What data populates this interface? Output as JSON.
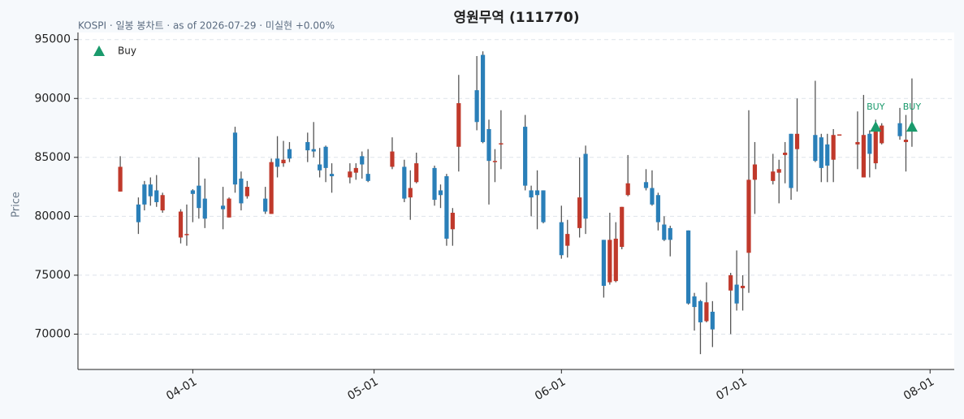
{
  "chart_data": {
    "type": "candlestick",
    "title": "영원무역 (111770)",
    "subtitle": "KOSPI · 일봉 봉차트 · as of 2026-07-29 · 미실현 +0.00%",
    "ylabel": "Price",
    "up_color": "#c0392b",
    "down_color": "#2a7fb8",
    "wick_color": "#555555",
    "grid": true,
    "legend": "upper left",
    "xlim": [
      "03-13",
      "08-05"
    ],
    "xticks": [
      "04-01",
      "05-01",
      "06-01",
      "07-01",
      "08-01"
    ],
    "ylim": [
      67000,
      95600
    ],
    "yticks": [
      70000,
      75000,
      80000,
      85000,
      90000,
      95000
    ],
    "x": [
      "03-20",
      "03-23",
      "03-24",
      "03-25",
      "03-26",
      "03-27",
      "03-30",
      "03-31",
      "04-01",
      "04-02",
      "04-03",
      "04-06",
      "04-07",
      "04-08",
      "04-09",
      "04-10",
      "04-13",
      "04-14",
      "04-15",
      "04-16",
      "04-17",
      "04-20",
      "04-21",
      "04-22",
      "04-23",
      "04-24",
      "04-27",
      "04-28",
      "04-29",
      "04-30",
      "05-04",
      "05-06",
      "05-07",
      "05-08",
      "05-11",
      "05-12",
      "05-13",
      "05-14",
      "05-15",
      "05-18",
      "05-19",
      "05-20",
      "05-21",
      "05-22",
      "05-26",
      "05-27",
      "05-28",
      "05-29",
      "06-01",
      "06-02",
      "06-04",
      "06-05",
      "06-08",
      "06-09",
      "06-10",
      "06-11",
      "06-12",
      "06-15",
      "06-16",
      "06-17",
      "06-18",
      "06-19",
      "06-22",
      "06-23",
      "06-24",
      "06-25",
      "06-26",
      "06-29",
      "06-30",
      "07-01",
      "07-02",
      "07-03",
      "07-06",
      "07-07",
      "07-08",
      "07-09",
      "07-10",
      "07-13",
      "07-14",
      "07-15",
      "07-16",
      "07-17",
      "07-20",
      "07-21",
      "07-22",
      "07-23",
      "07-24",
      "07-27",
      "07-28",
      "07-29"
    ],
    "open": [
      82100,
      81000,
      82700,
      82700,
      82200,
      80500,
      78200,
      78400,
      82200,
      82600,
      81500,
      80900,
      79900,
      87100,
      83200,
      81700,
      81500,
      80200,
      84900,
      84500,
      85700,
      86300,
      85700,
      84400,
      85900,
      83600,
      83300,
      83700,
      85100,
      83600,
      84200,
      84200,
      81600,
      82900,
      84100,
      82200,
      83400,
      78900,
      85900,
      90700,
      93700,
      87400,
      84600,
      86100,
      87600,
      82200,
      82200,
      82200,
      79500,
      77500,
      79000,
      85300,
      78000,
      74400,
      74500,
      77400,
      81800,
      82900,
      82400,
      81800,
      79300,
      79000,
      78800,
      73200,
      72800,
      71100,
      71900,
      73700,
      74200,
      73900,
      76900,
      83100,
      83000,
      83700,
      85200,
      87000,
      85700,
      86900,
      86700,
      86100,
      84800,
      86900,
      86100,
      83300,
      87000,
      84500,
      86200,
      87900,
      86300,
      87800
    ],
    "high": [
      85100,
      81600,
      83000,
      83300,
      83500,
      82000,
      80600,
      81000,
      82300,
      85000,
      83200,
      82500,
      81600,
      87600,
      83800,
      83000,
      82500,
      84900,
      86800,
      86400,
      86300,
      87100,
      88000,
      85800,
      86000,
      84500,
      84500,
      84500,
      85500,
      85700,
      86700,
      84800,
      83900,
      85400,
      84300,
      82700,
      83600,
      80700,
      92000,
      93600,
      94000,
      88200,
      85700,
      89000,
      88600,
      82600,
      83900,
      82200,
      80900,
      79700,
      85000,
      86000,
      78000,
      80300,
      79500,
      80800,
      85200,
      84000,
      83900,
      82000,
      80000,
      79200,
      78800,
      73500,
      72900,
      74400,
      72800,
      75200,
      77100,
      75000,
      89000,
      86300,
      85300,
      84800,
      86300,
      87000,
      90000,
      91500,
      87000,
      87000,
      87400,
      86950,
      88900,
      90300,
      87300,
      88200,
      87900,
      89200,
      88600,
      91700
    ],
    "low": [
      82100,
      78500,
      80500,
      80900,
      80800,
      80300,
      77700,
      77500,
      79500,
      79800,
      79000,
      78900,
      79900,
      82000,
      80500,
      81500,
      80200,
      80200,
      83300,
      84200,
      84600,
      84600,
      85000,
      83300,
      82900,
      82000,
      82800,
      83100,
      83200,
      82900,
      84000,
      81200,
      79700,
      82800,
      80900,
      80700,
      77500,
      77500,
      83800,
      87300,
      86200,
      81000,
      82900,
      84000,
      82200,
      80000,
      78900,
      79400,
      76400,
      76500,
      78200,
      78500,
      73100,
      74200,
      74400,
      77200,
      81700,
      82200,
      80900,
      78800,
      77900,
      76600,
      72500,
      70300,
      68300,
      71000,
      68900,
      70000,
      72000,
      72000,
      73500,
      80200,
      82700,
      81100,
      82800,
      81400,
      82100,
      84600,
      82900,
      82900,
      82900,
      86900,
      84000,
      83300,
      83300,
      84000,
      86100,
      86500,
      83800,
      85900
    ],
    "close": [
      84200,
      79500,
      81000,
      81700,
      81200,
      81800,
      80400,
      78500,
      81900,
      80700,
      79800,
      80600,
      81500,
      82700,
      81100,
      82500,
      80400,
      84600,
      84200,
      84800,
      84900,
      85600,
      85500,
      83900,
      84100,
      83400,
      83800,
      84100,
      84400,
      83000,
      85500,
      81500,
      82400,
      84500,
      81400,
      81800,
      78100,
      80300,
      89600,
      88000,
      86300,
      84700,
      84700,
      86200,
      82600,
      81600,
      81800,
      79500,
      76700,
      78500,
      81600,
      79800,
      74100,
      78000,
      78100,
      80800,
      82800,
      82400,
      81000,
      79500,
      78000,
      78000,
      72600,
      72300,
      71000,
      72700,
      70400,
      75000,
      72600,
      74100,
      83100,
      84400,
      83800,
      84000,
      85400,
      82400,
      87000,
      84700,
      84100,
      84300,
      86900,
      86950,
      86300,
      86900,
      85300,
      87400,
      87700,
      86800,
      86500,
      87400
    ],
    "markers": {
      "name": "Buy",
      "color": "#1a9a6c",
      "x": [
        "07-23",
        "07-29"
      ],
      "values": [
        87600,
        87600
      ],
      "labels": [
        "BUY",
        "BUY"
      ]
    }
  }
}
